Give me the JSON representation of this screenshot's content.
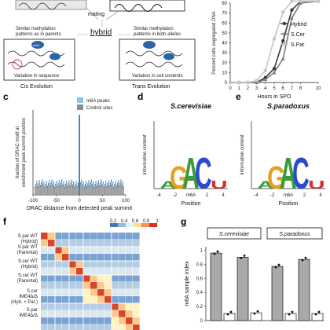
{
  "panel_a": {
    "mating": "mating",
    "hybrid": "hybrid",
    "left_caption": [
      "Similar methylation",
      "patterns as in parents"
    ],
    "right_caption": [
      "Similar methylation",
      "patterns in both alleles"
    ],
    "left_variation": "Variation in sequence",
    "right_variation": "Variation in cell contents",
    "left_evolution": "Cis Evolution",
    "right_evolution": "Trans Evolution",
    "m6a": "m6A"
  },
  "panel_c": {
    "label": "c"
  },
  "panel_d": {
    "label": "d"
  },
  "panel_e": {
    "label": "e"
  },
  "panel_f": {
    "label": "f"
  },
  "panel_g": {
    "label": "g"
  },
  "chart_data": [
    {
      "id": "b",
      "type": "line",
      "xlabel": "Hours in SPO",
      "ylabel": "Percent cells segregated DNA",
      "x": [
        0,
        1,
        2,
        3,
        4,
        5,
        6,
        7,
        8,
        10
      ],
      "ylim": [
        0,
        80
      ],
      "yticks": [
        0,
        10,
        20,
        30,
        40,
        50,
        60,
        70,
        80
      ],
      "series": [
        {
          "name": "Hybrid",
          "color": "#3a3a3a",
          "marker": "circle",
          "values": [
            0,
            0,
            0,
            0,
            5,
            14,
            42,
            73,
            82,
            82
          ]
        },
        {
          "name": "S.Cer",
          "color": "#7a7a7a",
          "marker": "triangle",
          "values": [
            0,
            0,
            0,
            0,
            3,
            10,
            24,
            65,
            80,
            82
          ]
        },
        {
          "name": "S.Par",
          "color": "#c6c6c6",
          "marker": "square",
          "values": [
            0,
            0,
            0,
            2,
            12,
            44,
            71,
            82,
            82,
            82
          ]
        }
      ]
    },
    {
      "id": "c",
      "type": "bar",
      "ylabel": [
        "fraction of DRAC motif at",
        "enrichment peak summit position"
      ],
      "xlabel": "DRAC distance from detected peak summit",
      "xticks": [
        -100,
        -50,
        0,
        50,
        100
      ],
      "legend": [
        "m6A peaks",
        "Control sites"
      ],
      "legend_colors": [
        "#86c5ec",
        "#8c8c8c"
      ]
    },
    {
      "id": "d",
      "type": "logo",
      "title": "S.cerevisiae",
      "ylabel": "Information content",
      "xlabel": "Position",
      "xticks": [
        "-4",
        "-2",
        "m6A",
        "2",
        "4"
      ]
    },
    {
      "id": "e",
      "type": "logo",
      "title": "S.paradoxus",
      "ylabel": "Information content",
      "xlabel": "Position",
      "xticks": [
        "-4",
        "-2",
        "m6A",
        "2",
        "4"
      ]
    },
    {
      "id": "f",
      "type": "heatmap",
      "scale_ticks": [
        "0.2",
        "0.4",
        "0.6",
        "0.8",
        "1"
      ],
      "row_labels": [
        [
          "S.par WT",
          "(Hybrid)"
        ],
        [
          "S.par WT",
          "(Parental)"
        ],
        [
          "S.cer WT",
          "(Hybrid)"
        ],
        [
          "S.cer WT",
          "(Parental)"
        ],
        [
          "S.cer",
          "IME4Δ/Δ",
          "(Hyb. + Par.)"
        ],
        [
          "S.par",
          "IME4Δ/Δ"
        ]
      ]
    },
    {
      "id": "g",
      "type": "bar",
      "ylabel": "m6A sample index",
      "groups": [
        "S.cerevisiae",
        "S.paradoxus"
      ],
      "yticks": [
        0,
        0.2,
        0.4,
        0.6,
        0.8,
        1
      ],
      "ylim": [
        0,
        1.05
      ],
      "bars": [
        {
          "group": 0,
          "color": "#a9a9a9",
          "value": 0.96
        },
        {
          "group": 0,
          "color": "#ffffff",
          "value": 0.1
        },
        {
          "group": 0,
          "color": "#a9a9a9",
          "value": 0.9
        },
        {
          "group": 0,
          "color": "#ffffff",
          "value": 0.11
        },
        {
          "group": 1,
          "color": "#a9a9a9",
          "value": 0.77
        },
        {
          "group": 1,
          "color": "#ffffff",
          "value": 0.1
        },
        {
          "group": 1,
          "color": "#a9a9a9",
          "value": 0.87
        },
        {
          "group": 1,
          "color": "#ffffff",
          "value": 0.1
        }
      ]
    }
  ]
}
